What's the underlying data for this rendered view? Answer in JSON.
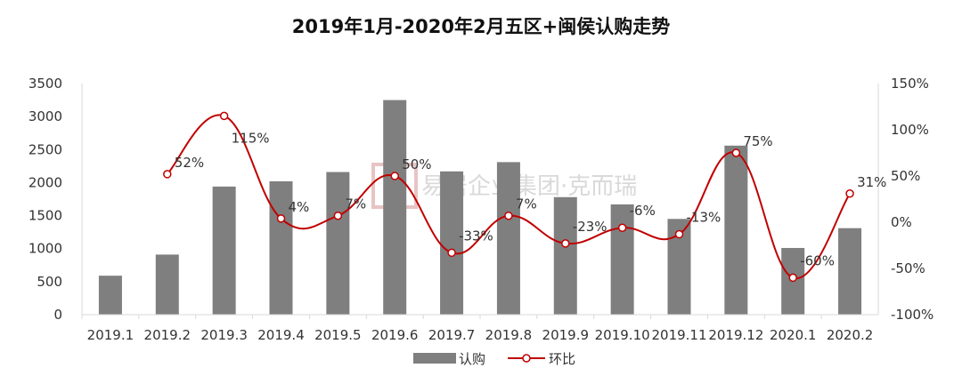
{
  "chart_data": {
    "type": "bar",
    "title": "2019年1月-2020年2月五区+闽侯认购走势",
    "categories": [
      "2019.1",
      "2019.2",
      "2019.3",
      "2019.4",
      "2019.5",
      "2019.6",
      "2019.7",
      "2019.8",
      "2019.9",
      "2019.10",
      "2019.11",
      "2019.12",
      "2020.1",
      "2020.2"
    ],
    "series": [
      {
        "name": "认购",
        "type": "bar",
        "axis": "left",
        "color": "#7f7f7f",
        "values": [
          590,
          910,
          1940,
          2020,
          2160,
          3250,
          2170,
          2310,
          1780,
          1670,
          1450,
          2560,
          1010,
          1310
        ]
      },
      {
        "name": "环比",
        "type": "line",
        "axis": "right",
        "color": "#c00000",
        "values": [
          null,
          52,
          115,
          4,
          7,
          50,
          -33,
          7,
          -23,
          -6,
          -13,
          75,
          -60,
          31
        ],
        "labels": [
          "",
          "52%",
          "115%",
          "4%",
          "7%",
          "50%",
          "-33%",
          "7%",
          "-23%",
          "-6%",
          "-13%",
          "75%",
          "-60%",
          "31%"
        ]
      }
    ],
    "y_left": {
      "min": 0,
      "max": 3500,
      "ticks": [
        "0",
        "500",
        "1000",
        "1500",
        "2000",
        "2500",
        "3000",
        "3500"
      ]
    },
    "y_right": {
      "min": -100,
      "max": 150,
      "ticks": [
        "-100%",
        "-50%",
        "0%",
        "50%",
        "100%",
        "150%"
      ]
    },
    "grid": false,
    "legend": "bottom",
    "watermark": "易居企业集团·克而瑞"
  }
}
